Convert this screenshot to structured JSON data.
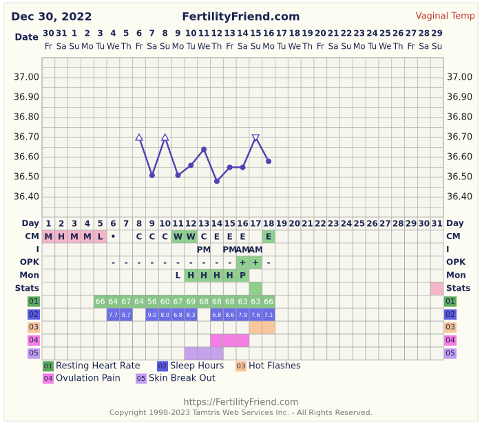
{
  "header": {
    "date": "Dec 30, 2022",
    "site": "FertilityFriend.com",
    "temp_type": "Vaginal Temp",
    "date_label": "Date"
  },
  "chart_data": {
    "type": "line",
    "categories": [
      "30",
      "31",
      "1",
      "2",
      "3",
      "4",
      "5",
      "6",
      "7",
      "8",
      "9",
      "10",
      "11",
      "12",
      "13",
      "14",
      "15",
      "16",
      "17",
      "18",
      "19",
      "20",
      "21",
      "22",
      "23",
      "24",
      "25",
      "26",
      "27",
      "28",
      "29"
    ],
    "weekdays": [
      "Fr",
      "Sa",
      "Su",
      "Mo",
      "Tu",
      "We",
      "Th",
      "Fr",
      "Sa",
      "Su",
      "Mo",
      "Tu",
      "We",
      "Th",
      "Fr",
      "Sa",
      "Su",
      "Mo",
      "Tu",
      "We",
      "Th",
      "Fr",
      "Sa",
      "Su",
      "Mo",
      "Tu",
      "We",
      "Th",
      "Fr",
      "Sa",
      "Su"
    ],
    "values": [
      null,
      null,
      null,
      null,
      null,
      null,
      null,
      36.7,
      36.51,
      36.7,
      36.51,
      36.56,
      36.64,
      36.48,
      36.55,
      36.55,
      36.7,
      36.58,
      null,
      null,
      null,
      null,
      null,
      null,
      null,
      null,
      null,
      null,
      null,
      null,
      null
    ],
    "markers": [
      null,
      null,
      null,
      null,
      null,
      null,
      null,
      "triangle-up",
      "circle",
      "triangle-up",
      "circle",
      "circle",
      "circle",
      "circle",
      "circle",
      "circle",
      "triangle-down",
      "circle",
      null,
      null,
      null,
      null,
      null,
      null,
      null,
      null,
      null,
      null,
      null,
      null,
      null
    ],
    "color": "#4f43b6",
    "ylim": [
      36.3,
      37.1
    ],
    "yticks": [
      {
        "value": 36.4,
        "label": "36.40"
      },
      {
        "value": 36.5,
        "label": "36.50"
      },
      {
        "value": 36.6,
        "label": "36.60"
      },
      {
        "value": 36.7,
        "label": "36.70"
      },
      {
        "value": 36.8,
        "label": "36.80"
      },
      {
        "value": 36.9,
        "label": "36.90"
      },
      {
        "value": 37,
        "label": "37.00"
      }
    ],
    "grid": true
  },
  "table": {
    "rows": [
      {
        "label": "Day",
        "cells": [
          1,
          2,
          3,
          4,
          5,
          6,
          7,
          8,
          9,
          10,
          11,
          12,
          13,
          14,
          15,
          16,
          17,
          18,
          19,
          20,
          21,
          22,
          23,
          24,
          25,
          26,
          27,
          28,
          29,
          30,
          31
        ]
      },
      {
        "label": "CM",
        "cells": [
          "M",
          "H",
          "M",
          "M",
          "L",
          "•",
          null,
          "C",
          "C",
          "C",
          "W",
          "W",
          "C",
          "E",
          "E",
          "E",
          null,
          "E",
          null,
          null,
          null,
          null,
          null,
          null,
          null,
          null,
          null,
          null,
          null,
          null,
          null
        ],
        "colors": [
          "#f3b6c9",
          "#f3b6c9",
          "#f3b6c9",
          "#f3b6c9",
          "#f3b6c9",
          null,
          null,
          null,
          null,
          null,
          "#8fd08f",
          "#8fd08f",
          null,
          null,
          null,
          null,
          null,
          "#8fd08f",
          null,
          null,
          null,
          null,
          null,
          null,
          null,
          null,
          null,
          null,
          null,
          null,
          null
        ]
      },
      {
        "label": "I",
        "cells": [
          null,
          null,
          null,
          null,
          null,
          null,
          null,
          null,
          null,
          null,
          null,
          null,
          "PM",
          null,
          "PM",
          "AM",
          "AM",
          null,
          null,
          null,
          null,
          null,
          null,
          null,
          null,
          null,
          null,
          null,
          null,
          null,
          null
        ]
      },
      {
        "label": "OPK",
        "cells": [
          null,
          null,
          null,
          null,
          null,
          "-",
          "-",
          "-",
          "-",
          "-",
          "-",
          "-",
          "-",
          "-",
          "-",
          "+",
          "+",
          "-",
          null,
          null,
          null,
          null,
          null,
          null,
          null,
          null,
          null,
          null,
          null,
          null,
          null
        ],
        "colors": [
          null,
          null,
          null,
          null,
          null,
          null,
          null,
          null,
          null,
          null,
          null,
          null,
          null,
          null,
          null,
          "#8fd08f",
          "#8fd08f",
          null,
          null,
          null,
          null,
          null,
          null,
          null,
          null,
          null,
          null,
          null,
          null,
          null,
          null
        ]
      },
      {
        "label": "Mon",
        "cells": [
          null,
          null,
          null,
          null,
          null,
          null,
          null,
          null,
          null,
          null,
          "L",
          "H",
          "H",
          "H",
          "H",
          "P",
          null,
          null,
          null,
          null,
          null,
          null,
          null,
          null,
          null,
          null,
          null,
          null,
          null,
          null,
          null
        ],
        "colors": [
          null,
          null,
          null,
          null,
          null,
          null,
          null,
          null,
          null,
          null,
          null,
          "#8fd08f",
          "#8fd08f",
          "#8fd08f",
          "#8fd08f",
          "#8fd08f",
          null,
          null,
          null,
          null,
          null,
          null,
          null,
          null,
          null,
          null,
          null,
          null,
          null,
          null,
          null
        ]
      },
      {
        "label": "Stats",
        "colors": [
          null,
          null,
          null,
          null,
          null,
          null,
          null,
          null,
          null,
          null,
          null,
          null,
          null,
          null,
          null,
          null,
          "#8fd08f",
          null,
          null,
          null,
          null,
          null,
          null,
          null,
          null,
          null,
          null,
          null,
          null,
          null,
          "#f3b6c9"
        ]
      }
    ],
    "trackers": [
      {
        "code": "01",
        "name": "Resting Heart Rate",
        "color": "#5ea85e",
        "cells": [
          null,
          null,
          null,
          null,
          66,
          64,
          67,
          64,
          56,
          60,
          67,
          69,
          68,
          68,
          68,
          63,
          63,
          66,
          null,
          null,
          null,
          null,
          null,
          null,
          null,
          null,
          null,
          null,
          null,
          null,
          null
        ],
        "colors": [
          null,
          null,
          null,
          null,
          "#86c686",
          "#86c686",
          "#86c686",
          "#86c686",
          "#86c686",
          "#86c686",
          "#86c686",
          "#86c686",
          "#86c686",
          "#86c686",
          "#86c686",
          "#86c686",
          "#86c686",
          "#86c686",
          null,
          null,
          null,
          null,
          null,
          null,
          null,
          null,
          null,
          null,
          null,
          null,
          null
        ]
      },
      {
        "code": "02",
        "name": "Sleep Hours",
        "color": "#5a5ae0",
        "cells": [
          null,
          null,
          null,
          null,
          null,
          "7.7",
          "8.7",
          null,
          "9.0",
          "8.0",
          "6.8",
          "8.3",
          null,
          "6.8",
          "8.6",
          "7.9",
          "7.6",
          "7.1",
          null,
          null,
          null,
          null,
          null,
          null,
          null,
          null,
          null,
          null,
          null,
          null,
          null
        ],
        "colors": [
          null,
          null,
          null,
          null,
          null,
          "#6b6ee6",
          "#6b6ee6",
          null,
          "#6b6ee6",
          "#6b6ee6",
          "#6b6ee6",
          "#6b6ee6",
          null,
          "#6b6ee6",
          "#6b6ee6",
          "#6b6ee6",
          "#6b6ee6",
          "#6b6ee6",
          null,
          null,
          null,
          null,
          null,
          null,
          null,
          null,
          null,
          null,
          null,
          null,
          null
        ]
      },
      {
        "code": "03",
        "name": "Hot Flashes",
        "color": "#f6c496",
        "colors": [
          null,
          null,
          null,
          null,
          null,
          null,
          null,
          null,
          null,
          null,
          null,
          null,
          null,
          null,
          null,
          null,
          "#f8c89c",
          "#f8c89c",
          null,
          null,
          null,
          null,
          null,
          null,
          null,
          null,
          null,
          null,
          null,
          null,
          null
        ]
      },
      {
        "code": "04",
        "name": "Ovulation Pain",
        "color": "#f47fe3",
        "colors": [
          null,
          null,
          null,
          null,
          null,
          null,
          null,
          null,
          null,
          null,
          null,
          null,
          null,
          "#f57ee4",
          "#f57ee4",
          "#f57ee4",
          null,
          null,
          null,
          null,
          null,
          null,
          null,
          null,
          null,
          null,
          null,
          null,
          null,
          null,
          null
        ]
      },
      {
        "code": "05",
        "name": "Skin Break Out",
        "color": "#c39cf0",
        "colors": [
          null,
          null,
          null,
          null,
          null,
          null,
          null,
          null,
          null,
          null,
          null,
          "#c5a1ee",
          "#c5a1ee",
          "#c5a1ee",
          null,
          null,
          null,
          null,
          null,
          null,
          null,
          null,
          null,
          null,
          null,
          null,
          null,
          null,
          null,
          null,
          null
        ]
      }
    ]
  },
  "footer": {
    "url": "https://FertilityFriend.com",
    "copyright": "Copyright 1998-2023 Tamtris Web Services Inc. - All Rights Reserved."
  }
}
